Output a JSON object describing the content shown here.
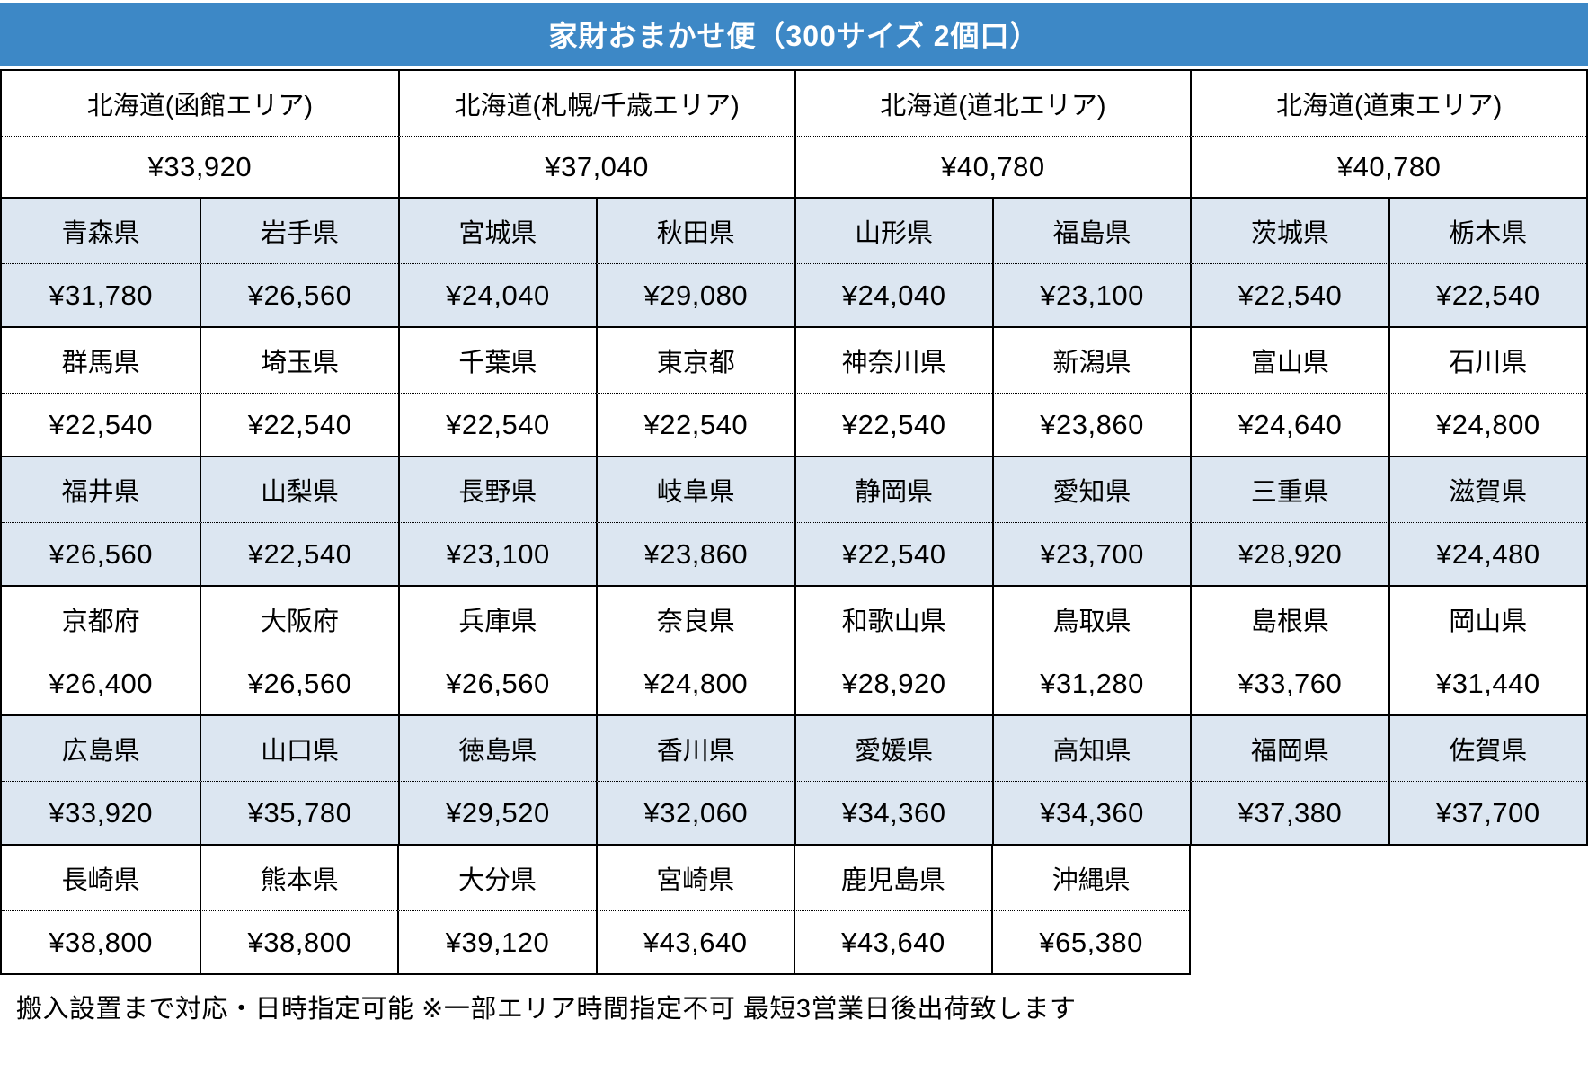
{
  "title": "家財おまかせ便（300サイズ 2個口）",
  "footer": "搬入設置まで対応・日時指定可能 ※一部エリア時間指定不可 最短3営業日後出荷致します",
  "colors": {
    "header_bg": "#3D88C6",
    "header_text": "#FFFFFF",
    "band_blue": "#DCE6F1",
    "band_white": "#FFFFFF",
    "border": "#000000",
    "text": "#000000"
  },
  "hokkaido": [
    {
      "area": "北海道(函館エリア)",
      "price": "¥33,920"
    },
    {
      "area": "北海道(札幌/千歳エリア)",
      "price": "¥37,040"
    },
    {
      "area": "北海道(道北エリア)",
      "price": "¥40,780"
    },
    {
      "area": "北海道(道東エリア)",
      "price": "¥40,780"
    }
  ],
  "groups": [
    {
      "band": "blue",
      "cells": [
        {
          "name": "青森県",
          "price": "¥31,780"
        },
        {
          "name": "岩手県",
          "price": "¥26,560"
        },
        {
          "name": "宮城県",
          "price": "¥24,040"
        },
        {
          "name": "秋田県",
          "price": "¥29,080"
        },
        {
          "name": "山形県",
          "price": "¥24,040"
        },
        {
          "name": "福島県",
          "price": "¥23,100"
        },
        {
          "name": "茨城県",
          "price": "¥22,540"
        },
        {
          "name": "栃木県",
          "price": "¥22,540"
        }
      ]
    },
    {
      "band": "white",
      "cells": [
        {
          "name": "群馬県",
          "price": "¥22,540"
        },
        {
          "name": "埼玉県",
          "price": "¥22,540"
        },
        {
          "name": "千葉県",
          "price": "¥22,540"
        },
        {
          "name": "東京都",
          "price": "¥22,540"
        },
        {
          "name": "神奈川県",
          "price": "¥22,540"
        },
        {
          "name": "新潟県",
          "price": "¥23,860"
        },
        {
          "name": "富山県",
          "price": "¥24,640"
        },
        {
          "name": "石川県",
          "price": "¥24,800"
        }
      ]
    },
    {
      "band": "blue",
      "cells": [
        {
          "name": "福井県",
          "price": "¥26,560"
        },
        {
          "name": "山梨県",
          "price": "¥22,540"
        },
        {
          "name": "長野県",
          "price": "¥23,100"
        },
        {
          "name": "岐阜県",
          "price": "¥23,860"
        },
        {
          "name": "静岡県",
          "price": "¥22,540"
        },
        {
          "name": "愛知県",
          "price": "¥23,700"
        },
        {
          "name": "三重県",
          "price": "¥28,920"
        },
        {
          "name": "滋賀県",
          "price": "¥24,480"
        }
      ]
    },
    {
      "band": "white",
      "cells": [
        {
          "name": "京都府",
          "price": "¥26,400"
        },
        {
          "name": "大阪府",
          "price": "¥26,560"
        },
        {
          "name": "兵庫県",
          "price": "¥26,560"
        },
        {
          "name": "奈良県",
          "price": "¥24,800"
        },
        {
          "name": "和歌山県",
          "price": "¥28,920"
        },
        {
          "name": "鳥取県",
          "price": "¥31,280"
        },
        {
          "name": "島根県",
          "price": "¥33,760"
        },
        {
          "name": "岡山県",
          "price": "¥31,440"
        }
      ]
    },
    {
      "band": "blue",
      "cells": [
        {
          "name": "広島県",
          "price": "¥33,920"
        },
        {
          "name": "山口県",
          "price": "¥35,780"
        },
        {
          "name": "徳島県",
          "price": "¥29,520"
        },
        {
          "name": "香川県",
          "price": "¥32,060"
        },
        {
          "name": "愛媛県",
          "price": "¥34,360"
        },
        {
          "name": "高知県",
          "price": "¥34,360"
        },
        {
          "name": "福岡県",
          "price": "¥37,380"
        },
        {
          "name": "佐賀県",
          "price": "¥37,700"
        }
      ]
    },
    {
      "band": "white",
      "cells": [
        {
          "name": "長崎県",
          "price": "¥38,800"
        },
        {
          "name": "熊本県",
          "price": "¥38,800"
        },
        {
          "name": "大分県",
          "price": "¥39,120"
        },
        {
          "name": "宮崎県",
          "price": "¥43,640"
        },
        {
          "name": "鹿児島県",
          "price": "¥43,640"
        },
        {
          "name": "沖縄県",
          "price": "¥65,380"
        }
      ]
    }
  ]
}
